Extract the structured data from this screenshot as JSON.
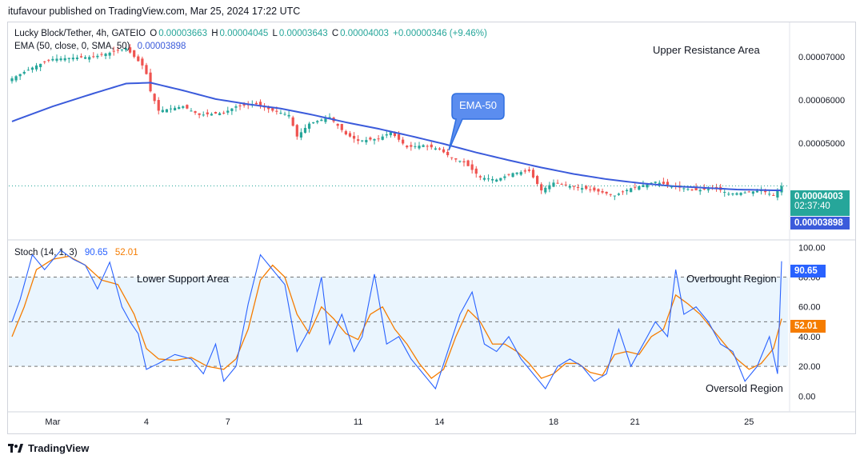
{
  "publisher_line": "itufavour published on TradingView.com, Mar 25, 2024 17:22 UTC",
  "footer": {
    "brand": "TradingView"
  },
  "colors": {
    "up": "#26a69a",
    "down": "#ef5350",
    "ema": "#3b5bdb",
    "stoch_k": "#2962ff",
    "stoch_d": "#f57c00",
    "band_fill": "#e3f2fd",
    "grid_line": "#555555",
    "callout": "#5b8def"
  },
  "header": {
    "symbol": "Lucky Block/Tether, 4h, GATEIO",
    "o_label": "O",
    "o_value": "0.00003663",
    "h_label": "H",
    "h_value": "0.00004045",
    "l_label": "L",
    "l_value": "0.00003643",
    "c_label": "C",
    "c_value": "0.00004003",
    "change": "+0.00000346 (+9.46%)",
    "ema_label": "EMA (50, close, 0, SMA, 50)",
    "ema_value": "0.00003898"
  },
  "stoch_legend": {
    "label": "Stoch (14, 1, 3)",
    "k_value": "90.65",
    "d_value": "52.01"
  },
  "annotations": {
    "upper_resistance": "Upper Resistance Area",
    "ema_callout": "EMA-50",
    "lower_support": "Lower Support Area",
    "overbought": "Overbought Region",
    "oversold": "Oversold Region"
  },
  "price_tags": {
    "last_price": "0.00004003",
    "countdown": "02:37:40",
    "ema_value": "0.00003898"
  },
  "stoch_tags": {
    "k": "90.65",
    "d": "52.01"
  },
  "chart_data": [
    {
      "type": "candlestick",
      "title": "Lucky Block/Tether, 4h, GATEIO",
      "y_ticks": [
        "0.00007000",
        "0.00006000",
        "0.00005000"
      ],
      "y_tick_values": [
        7e-05,
        6e-05,
        5e-05
      ],
      "ylim": [
        2.75e-05,
        7.8e-05
      ],
      "x_ticks": [
        "Mar",
        "4",
        "7",
        "11",
        "14",
        "18",
        "21",
        "25"
      ],
      "x_tick_index": [
        10,
        33,
        53,
        85,
        105,
        133,
        153,
        181
      ],
      "n_bars": 190,
      "last_close": 4.003e-05,
      "anchors": [
        [
          0,
          6.5e-05
        ],
        [
          6,
          6.8e-05
        ],
        [
          10,
          6.95e-05
        ],
        [
          15,
          6.98e-05
        ],
        [
          20,
          7e-05
        ],
        [
          25,
          7.12e-05
        ],
        [
          28,
          7.2e-05
        ],
        [
          32,
          6.8e-05
        ],
        [
          33,
          6.6e-05
        ],
        [
          34,
          6.2e-05
        ],
        [
          36,
          5.75e-05
        ],
        [
          42,
          5.85e-05
        ],
        [
          46,
          5.65e-05
        ],
        [
          52,
          5.7e-05
        ],
        [
          55,
          5.85e-05
        ],
        [
          60,
          5.9e-05
        ],
        [
          64,
          5.75e-05
        ],
        [
          68,
          5.65e-05
        ],
        [
          70,
          5.15e-05
        ],
        [
          73,
          5.45e-05
        ],
        [
          78,
          5.6e-05
        ],
        [
          82,
          5.2e-05
        ],
        [
          85,
          5.05e-05
        ],
        [
          90,
          5.1e-05
        ],
        [
          93,
          5.25e-05
        ],
        [
          97,
          4.9e-05
        ],
        [
          101,
          4.95e-05
        ],
        [
          105,
          4.85e-05
        ],
        [
          108,
          4.65e-05
        ],
        [
          111,
          4.55e-05
        ],
        [
          115,
          4.2e-05
        ],
        [
          119,
          4.15e-05
        ],
        [
          123,
          4.3e-05
        ],
        [
          127,
          4.35e-05
        ],
        [
          130,
          3.9e-05
        ],
        [
          133,
          4.08e-05
        ],
        [
          137,
          4e-05
        ],
        [
          142,
          3.92e-05
        ],
        [
          148,
          3.78e-05
        ],
        [
          152,
          3.95e-05
        ],
        [
          158,
          4.1e-05
        ],
        [
          163,
          3.98e-05
        ],
        [
          168,
          3.9e-05
        ],
        [
          173,
          3.95e-05
        ],
        [
          176,
          3.82e-05
        ],
        [
          180,
          3.85e-05
        ],
        [
          184,
          3.9e-05
        ],
        [
          187,
          3.78e-05
        ],
        [
          189,
          4e-05
        ]
      ],
      "series": [
        {
          "name": "EMA (50, close, 0, SMA, 50)",
          "points": [
            [
              0,
              5.5e-05
            ],
            [
              10,
              5.85e-05
            ],
            [
              20,
              6.15e-05
            ],
            [
              28,
              6.38e-05
            ],
            [
              34,
              6.4e-05
            ],
            [
              42,
              6.22e-05
            ],
            [
              50,
              6.02e-05
            ],
            [
              58,
              5.9e-05
            ],
            [
              66,
              5.8e-05
            ],
            [
              74,
              5.65e-05
            ],
            [
              82,
              5.48e-05
            ],
            [
              90,
              5.33e-05
            ],
            [
              98,
              5.16e-05
            ],
            [
              106,
              4.98e-05
            ],
            [
              114,
              4.78e-05
            ],
            [
              122,
              4.6e-05
            ],
            [
              130,
              4.43e-05
            ],
            [
              138,
              4.28e-05
            ],
            [
              146,
              4.16e-05
            ],
            [
              154,
              4.07e-05
            ],
            [
              162,
              4e-05
            ],
            [
              170,
              3.96e-05
            ],
            [
              178,
              3.92e-05
            ],
            [
              189,
              3.898e-05
            ]
          ]
        }
      ]
    },
    {
      "type": "line",
      "title": "Stoch (14, 1, 3)",
      "y_ticks": [
        "100.00",
        "80.00",
        "60.00",
        "40.00",
        "20.00",
        "0.00"
      ],
      "y_tick_values": [
        100,
        80,
        60,
        40,
        20,
        0
      ],
      "band": [
        20,
        80
      ],
      "midline": 50,
      "ylim": [
        -10,
        105
      ],
      "series": [
        {
          "name": "%K",
          "points": [
            [
              0,
              50
            ],
            [
              2,
              65
            ],
            [
              5,
              95
            ],
            [
              8,
              85
            ],
            [
              12,
              98
            ],
            [
              15,
              92
            ],
            [
              18,
              88
            ],
            [
              21,
              72
            ],
            [
              24,
              90
            ],
            [
              27,
              60
            ],
            [
              29,
              50
            ],
            [
              31,
              42
            ],
            [
              33,
              18
            ],
            [
              36,
              22
            ],
            [
              40,
              28
            ],
            [
              44,
              25
            ],
            [
              47,
              15
            ],
            [
              50,
              35
            ],
            [
              52,
              10
            ],
            [
              55,
              20
            ],
            [
              58,
              62
            ],
            [
              61,
              95
            ],
            [
              64,
              85
            ],
            [
              67,
              75
            ],
            [
              70,
              30
            ],
            [
              73,
              45
            ],
            [
              76,
              80
            ],
            [
              78,
              35
            ],
            [
              81,
              55
            ],
            [
              84,
              30
            ],
            [
              86,
              40
            ],
            [
              89,
              82
            ],
            [
              92,
              35
            ],
            [
              95,
              40
            ],
            [
              98,
              25
            ],
            [
              101,
              15
            ],
            [
              104,
              5
            ],
            [
              107,
              30
            ],
            [
              110,
              55
            ],
            [
              113,
              70
            ],
            [
              116,
              35
            ],
            [
              119,
              30
            ],
            [
              122,
              40
            ],
            [
              125,
              25
            ],
            [
              128,
              15
            ],
            [
              131,
              5
            ],
            [
              134,
              20
            ],
            [
              137,
              25
            ],
            [
              140,
              20
            ],
            [
              143,
              10
            ],
            [
              146,
              15
            ],
            [
              149,
              45
            ],
            [
              152,
              20
            ],
            [
              155,
              35
            ],
            [
              158,
              50
            ],
            [
              161,
              40
            ],
            [
              163,
              85
            ],
            [
              165,
              55
            ],
            [
              168,
              60
            ],
            [
              171,
              50
            ],
            [
              174,
              35
            ],
            [
              177,
              30
            ],
            [
              180,
              10
            ],
            [
              183,
              20
            ],
            [
              186,
              40
            ],
            [
              188,
              15
            ],
            [
              189,
              90.65
            ]
          ]
        },
        {
          "name": "%D",
          "points": [
            [
              0,
              40
            ],
            [
              3,
              60
            ],
            [
              6,
              85
            ],
            [
              10,
              92
            ],
            [
              14,
              94
            ],
            [
              18,
              88
            ],
            [
              22,
              78
            ],
            [
              26,
              75
            ],
            [
              30,
              55
            ],
            [
              33,
              32
            ],
            [
              36,
              25
            ],
            [
              40,
              24
            ],
            [
              44,
              26
            ],
            [
              48,
              20
            ],
            [
              52,
              18
            ],
            [
              55,
              25
            ],
            [
              58,
              45
            ],
            [
              61,
              78
            ],
            [
              64,
              88
            ],
            [
              67,
              80
            ],
            [
              70,
              55
            ],
            [
              73,
              42
            ],
            [
              76,
              60
            ],
            [
              79,
              52
            ],
            [
              82,
              42
            ],
            [
              85,
              38
            ],
            [
              88,
              55
            ],
            [
              91,
              60
            ],
            [
              94,
              45
            ],
            [
              97,
              35
            ],
            [
              100,
              22
            ],
            [
              103,
              12
            ],
            [
              106,
              18
            ],
            [
              109,
              40
            ],
            [
              112,
              58
            ],
            [
              115,
              50
            ],
            [
              118,
              35
            ],
            [
              121,
              35
            ],
            [
              124,
              30
            ],
            [
              127,
              22
            ],
            [
              130,
              12
            ],
            [
              133,
              15
            ],
            [
              136,
              22
            ],
            [
              139,
              22
            ],
            [
              142,
              16
            ],
            [
              145,
              14
            ],
            [
              148,
              28
            ],
            [
              151,
              30
            ],
            [
              154,
              28
            ],
            [
              157,
              40
            ],
            [
              160,
              45
            ],
            [
              163,
              68
            ],
            [
              166,
              62
            ],
            [
              169,
              55
            ],
            [
              172,
              45
            ],
            [
              175,
              35
            ],
            [
              178,
              25
            ],
            [
              181,
              18
            ],
            [
              184,
              22
            ],
            [
              187,
              32
            ],
            [
              189,
              52.01
            ]
          ]
        }
      ]
    }
  ]
}
